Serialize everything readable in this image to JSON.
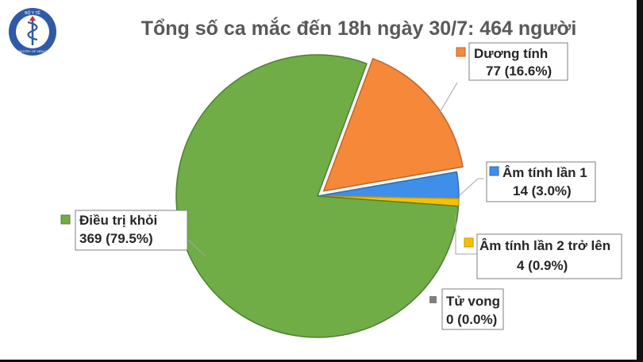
{
  "logo": {
    "top_text": "BỘ Y TẾ",
    "bottom_text": "MINISTRY OF HEALTH"
  },
  "chart_data": {
    "type": "pie",
    "title": "Tổng số ca mắc đến 18h ngày 30/7: 464 người",
    "total": 464,
    "slices": [
      {
        "label": "Dương tính",
        "value": 77,
        "value_text": "77 (16.6%)",
        "color": "#F6883A",
        "edge": "#C0652A",
        "exploded": true
      },
      {
        "label": "Âm tính lần 1",
        "value": 14,
        "value_text": "14 (3.0%)",
        "color": "#3F8EEA",
        "edge": "#2F6DB5",
        "exploded": false
      },
      {
        "label": "Âm tính lần 2 trở lên",
        "value": 4,
        "value_text": "4 (0.9%)",
        "color": "#F6C000",
        "edge": "#C79A00",
        "exploded": false
      },
      {
        "label": "Tử vong",
        "value": 0,
        "value_text": "0 (0.0%)",
        "color": "#7F7F7F",
        "edge": "#5f5f5f",
        "exploded": false
      },
      {
        "label": "Điều trị khỏi",
        "value": 369,
        "value_text": "369 (79.5%)",
        "color": "#70AD47",
        "edge": "#507E34",
        "exploded": false
      }
    ]
  }
}
